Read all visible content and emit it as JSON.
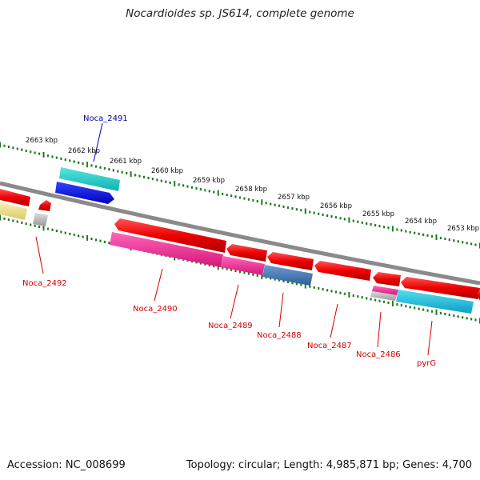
{
  "title": "Nocardioides sp. JS614, complete genome",
  "footer": {
    "accession": "Accession: NC_008699",
    "summary": "Topology: circular; Length: 4,985,871 bp; Genes: 4,700"
  },
  "colors": {
    "backbone": "#8a8a8a",
    "tick": "#1f7a1f",
    "label_red": "#d40000",
    "label_blue": "#0000aa"
  },
  "scale_ticks": [
    "2663 kbp",
    "2662 kbp",
    "2661 kbp",
    "2660 kbp",
    "2659 kbp",
    "2658 kbp",
    "2657 kbp",
    "2656 kbp",
    "2655 kbp",
    "2654 kbp",
    "2653 kbp"
  ],
  "gene_labels": [
    {
      "text": "Noca_2491",
      "color": "blue"
    },
    {
      "text": "Noca_2492",
      "color": "red"
    },
    {
      "text": "Noca_2490",
      "color": "red"
    },
    {
      "text": "Noca_2489",
      "color": "red"
    },
    {
      "text": "Noca_2488",
      "color": "red"
    },
    {
      "text": "Noca_2487",
      "color": "red"
    },
    {
      "text": "Noca_2486",
      "color": "red"
    },
    {
      "text": "pyrG",
      "color": "red"
    }
  ],
  "features": [
    {
      "kind": "gene",
      "color": "#ee0000",
      "strand": "forward"
    },
    {
      "kind": "gene",
      "color": "#ee0000",
      "strand": "reverse"
    },
    {
      "kind": "gene",
      "color": "#ee0000",
      "strand": "forward"
    },
    {
      "kind": "gene",
      "color": "#ee0000",
      "strand": "forward"
    },
    {
      "kind": "gene",
      "color": "#ee0000",
      "strand": "reverse"
    },
    {
      "kind": "gene",
      "color": "#ee0000",
      "strand": "reverse"
    },
    {
      "kind": "gene",
      "color": "#ee0000",
      "strand": "reverse"
    },
    {
      "kind": "gene",
      "color": "#ee0000",
      "strand": "reverse"
    },
    {
      "kind": "cds",
      "color": "#ee2288"
    },
    {
      "kind": "cds",
      "color": "#4a7ab0"
    },
    {
      "kind": "cds",
      "color": "#22bbdd"
    },
    {
      "kind": "cds",
      "color": "#0000ee"
    },
    {
      "kind": "cds",
      "color": "#f0e08a"
    },
    {
      "kind": "cds",
      "color": "#aaaaaa"
    }
  ]
}
